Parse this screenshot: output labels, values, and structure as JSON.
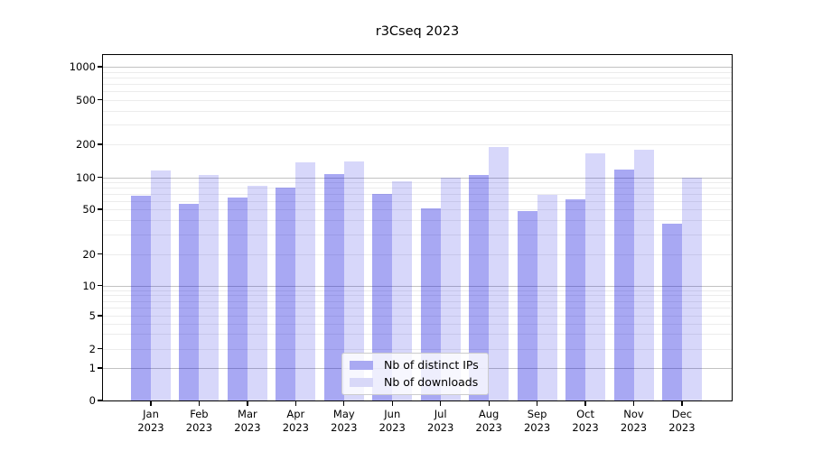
{
  "title": "r3Cseq 2023",
  "chart_data": {
    "type": "bar",
    "title": "r3Cseq 2023",
    "categories": [
      "Jan 2023",
      "Feb 2023",
      "Mar 2023",
      "Apr 2023",
      "May 2023",
      "Jun 2023",
      "Jul 2023",
      "Aug 2023",
      "Sep 2023",
      "Oct 2023",
      "Nov 2023",
      "Dec 2023"
    ],
    "series": [
      {
        "name": "Nb of distinct IPs",
        "color_hex": "#a9a9f2",
        "fill_rgba": "rgba(0,0,220,0.34)",
        "values": [
          67,
          56,
          65,
          80,
          106,
          70,
          51,
          104,
          48,
          62,
          118,
          37
        ]
      },
      {
        "name": "Nb of downloads",
        "color_hex": "#d8d8f8",
        "fill_rgba": "rgba(0,0,220,0.155)",
        "values": [
          115,
          104,
          83,
          137,
          139,
          92,
          100,
          190,
          69,
          165,
          180,
          100
        ]
      }
    ],
    "xlabel": "",
    "ylabel": "",
    "yticks": [
      0,
      1,
      2,
      5,
      10,
      20,
      50,
      100,
      200,
      500,
      1000
    ],
    "yscale": "log-like with zero baseline",
    "ylim": [
      0,
      1320
    ],
    "grid": "horizontal, major at powers of 10, faint minors",
    "legend_position": "lower center",
    "legend_entries": [
      "Nb of distinct IPs",
      "Nb of downloads"
    ]
  }
}
